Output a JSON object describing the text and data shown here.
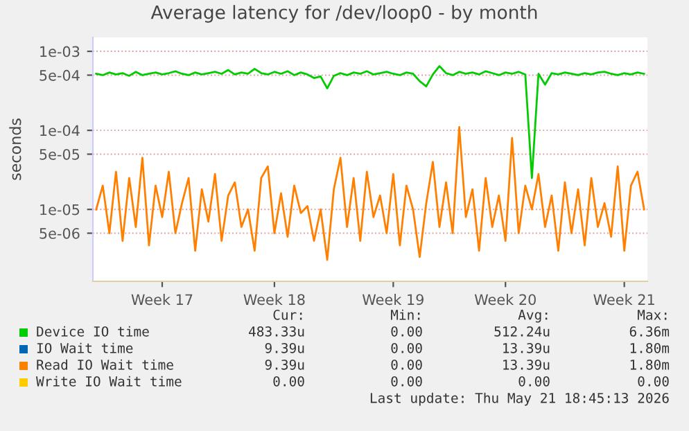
{
  "chart_data": {
    "type": "line",
    "title": "Average latency for /dev/loop0 - by month",
    "ylabel": "seconds",
    "log": "y",
    "categories": [
      null,
      null,
      null,
      null,
      null,
      null,
      null,
      null,
      null,
      null,
      "Week 17",
      null,
      null,
      null,
      null,
      null,
      null,
      null,
      null,
      null,
      null,
      null,
      null,
      null,
      null,
      null,
      null,
      "Week 18",
      null,
      null,
      null,
      null,
      null,
      null,
      null,
      null,
      null,
      null,
      null,
      null,
      null,
      null,
      null,
      null,
      null,
      "Week 19",
      null,
      null,
      null,
      null,
      null,
      null,
      null,
      null,
      null,
      null,
      null,
      null,
      null,
      null,
      null,
      null,
      "Week 20",
      null,
      null,
      null,
      null,
      null,
      null,
      null,
      null,
      null,
      null,
      null,
      null,
      null,
      null,
      null,
      null,
      null,
      "Week 21",
      null,
      null,
      null
    ],
    "series": [
      {
        "name": "Device IO time",
        "color": "#00cc00",
        "values": [
          0.00052,
          0.0005,
          0.00054,
          0.00051,
          0.00053,
          0.00049,
          0.00055,
          0.0005,
          0.00052,
          0.00054,
          0.00051,
          0.00053,
          0.00056,
          0.00052,
          0.0005,
          0.00054,
          0.00051,
          0.00053,
          0.00055,
          0.00052,
          0.00058,
          0.00051,
          0.00054,
          0.00052,
          0.0006,
          0.00053,
          0.00051,
          0.00055,
          0.00052,
          0.00056,
          0.0005,
          0.00054,
          0.00051,
          0.00046,
          0.00048,
          0.00034,
          0.00049,
          0.00053,
          0.0005,
          0.00054,
          0.00052,
          0.00056,
          0.00051,
          0.00053,
          0.00055,
          0.00052,
          0.0005,
          0.00054,
          0.00052,
          0.00042,
          0.00036,
          0.00051,
          0.00065,
          0.00053,
          0.0005,
          0.00055,
          0.00052,
          0.00054,
          0.00051,
          0.00056,
          0.00053,
          0.0005,
          0.00054,
          0.00052,
          0.00055,
          0.00051,
          2.5e-05,
          0.00052,
          0.00038,
          0.00053,
          0.00051,
          0.00054,
          0.00052,
          0.0005,
          0.00053,
          0.00051,
          0.00054,
          0.00055,
          0.00052,
          0.0005,
          0.00053,
          0.00051,
          0.00054,
          0.00052
        ]
      },
      {
        "name": "IO Wait time",
        "color": "#0066b3",
        "values": [
          null,
          null,
          null,
          null,
          null,
          null,
          null,
          null,
          null,
          null,
          null,
          null,
          null,
          null,
          null,
          null,
          null,
          null,
          null,
          null,
          null,
          null,
          null,
          null,
          null,
          null,
          null,
          null,
          null,
          null,
          null,
          null,
          null,
          null,
          null,
          null,
          null,
          null,
          null,
          null,
          null,
          null,
          null,
          null,
          null,
          null,
          null,
          null,
          null,
          null,
          null,
          null,
          null,
          null,
          null,
          null,
          null,
          null,
          null,
          null,
          null,
          null,
          null,
          null,
          null,
          null,
          null,
          null,
          null,
          null,
          null,
          null,
          null,
          null,
          null,
          null,
          null,
          null,
          null,
          null,
          null,
          null,
          null,
          null
        ]
      },
      {
        "name": "Read IO Wait time",
        "color": "#ff8000",
        "values": [
          1e-05,
          2e-05,
          5e-06,
          3e-05,
          4e-06,
          2.5e-05,
          6e-06,
          4.5e-05,
          3.5e-06,
          2e-05,
          8e-06,
          3e-05,
          5e-06,
          1.2e-05,
          2.5e-05,
          3e-06,
          1.8e-05,
          7e-06,
          2.8e-05,
          4e-06,
          1.5e-05,
          2.2e-05,
          6e-06,
          1e-05,
          3e-06,
          2.5e-05,
          3.5e-05,
          5e-06,
          1.6e-05,
          4.5e-06,
          2e-05,
          9e-06,
          1.1e-05,
          4e-06,
          1e-05,
          2.3e-06,
          1.8e-05,
          4.5e-05,
          6e-06,
          2.5e-05,
          4e-06,
          3e-05,
          8e-06,
          1.5e-05,
          5e-06,
          2.8e-05,
          3.5e-06,
          2e-05,
          1e-05,
          2.5e-06,
          1.2e-05,
          4e-05,
          6e-06,
          2.2e-05,
          5e-06,
          0.00011,
          8e-06,
          1.8e-05,
          3e-06,
          2.5e-05,
          6e-06,
          1.5e-05,
          4e-06,
          8e-05,
          5e-06,
          2e-05,
          1e-05,
          2.8e-05,
          6e-06,
          1.5e-05,
          3e-06,
          2.2e-05,
          5e-06,
          1.8e-05,
          3.5e-06,
          2.5e-05,
          6e-06,
          1.2e-05,
          4.5e-06,
          3.5e-05,
          3e-06,
          2e-05,
          3e-05,
          1e-05
        ]
      },
      {
        "name": "Write IO Wait time",
        "color": "#ffcc00",
        "values": [
          null,
          null,
          null,
          null,
          null,
          null,
          null,
          null,
          null,
          null,
          null,
          null,
          null,
          null,
          null,
          null,
          null,
          null,
          null,
          null,
          null,
          null,
          null,
          null,
          null,
          null,
          null,
          null,
          null,
          null,
          null,
          null,
          null,
          null,
          null,
          null,
          null,
          null,
          null,
          null,
          null,
          null,
          null,
          null,
          null,
          null,
          null,
          null,
          null,
          null,
          null,
          null,
          null,
          null,
          null,
          null,
          null,
          null,
          null,
          null,
          null,
          null,
          null,
          null,
          null,
          null,
          null,
          null,
          null,
          null,
          null,
          null,
          null,
          null,
          null,
          null,
          null,
          null,
          null,
          null,
          null,
          null,
          null,
          null
        ]
      }
    ],
    "ylim": [
      1.23e-06,
      0.0015
    ],
    "yticks": [
      {
        "value": 5e-06,
        "label": "5e-06"
      },
      {
        "value": 1e-05,
        "label": "1e-05"
      },
      {
        "value": 5e-05,
        "label": "5e-05"
      },
      {
        "value": 0.0001,
        "label": "1e-04"
      },
      {
        "value": 0.0005,
        "label": "5e-04"
      },
      {
        "value": 0.001,
        "label": "1e-03"
      }
    ],
    "grid": "y",
    "legend": "bottom",
    "marker": "none",
    "line_style": "solid",
    "annotations": [
      "Cur:",
      "Min:",
      "Avg:",
      "Max:",
      "483.33u",
      "0.00",
      "512.24u",
      "6.36m",
      "9.39u",
      "0.00",
      "13.39u",
      "1.80m",
      "9.39u",
      "0.00",
      "13.39u",
      "1.80m",
      "0.00",
      "0.00",
      "0.00",
      "0.00",
      "Last update: Thu May 21 18:45:13 2026"
    ]
  }
}
